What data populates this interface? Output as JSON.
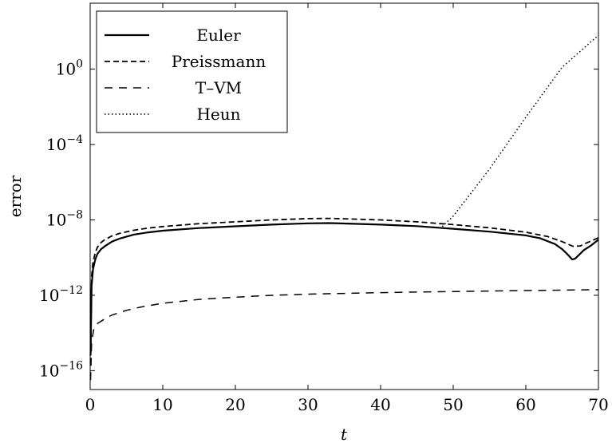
{
  "chart_data": {
    "type": "line",
    "xlabel": "t",
    "ylabel": "error",
    "xlim": [
      0,
      70
    ],
    "ylim_log10": [
      -17,
      3.5
    ],
    "yscale": "log",
    "xticks": [
      0,
      10,
      20,
      30,
      40,
      50,
      60,
      70
    ],
    "yticks": [
      {
        "exp": 0,
        "base": "10",
        "sup": "0"
      },
      {
        "exp": -4,
        "base": "10",
        "sup": "−4"
      },
      {
        "exp": -8,
        "base": "10",
        "sup": "−8"
      },
      {
        "exp": -12,
        "base": "10",
        "sup": "−12"
      },
      {
        "exp": -16,
        "base": "10",
        "sup": "−16"
      }
    ],
    "grid": false,
    "legend_position": "top-left",
    "series": [
      {
        "name": "Euler",
        "style": "solid",
        "x": [
          0.05,
          0.2,
          0.4,
          0.7,
          1,
          1.5,
          2,
          3,
          4,
          6,
          8,
          10,
          15,
          20,
          25,
          30,
          33,
          35,
          40,
          45,
          50,
          55,
          60,
          62,
          64,
          65,
          65.8,
          66.4,
          66.8,
          67.2,
          68,
          69,
          70
        ],
        "log10y": [
          -15.2,
          -11.5,
          -10.6,
          -10.1,
          -9.8,
          -9.55,
          -9.4,
          -9.15,
          -9.0,
          -8.78,
          -8.66,
          -8.57,
          -8.43,
          -8.34,
          -8.25,
          -8.18,
          -8.17,
          -8.19,
          -8.25,
          -8.33,
          -8.47,
          -8.62,
          -8.82,
          -8.98,
          -9.28,
          -9.55,
          -9.85,
          -10.1,
          -10.05,
          -9.9,
          -9.6,
          -9.35,
          -9.05
        ]
      },
      {
        "name": "Preissmann",
        "style": "dashed",
        "x": [
          0.05,
          0.2,
          0.4,
          0.7,
          1,
          1.5,
          2,
          3,
          4,
          6,
          8,
          10,
          15,
          20,
          25,
          30,
          33,
          35,
          40,
          45,
          50,
          55,
          60,
          63,
          65,
          66.5,
          67.5,
          68.5,
          70
        ],
        "log10y": [
          -15.2,
          -11.0,
          -10.2,
          -9.75,
          -9.45,
          -9.2,
          -9.05,
          -8.85,
          -8.72,
          -8.55,
          -8.43,
          -8.35,
          -8.2,
          -8.1,
          -8.0,
          -7.93,
          -7.92,
          -7.94,
          -8.0,
          -8.1,
          -8.25,
          -8.42,
          -8.65,
          -8.88,
          -9.15,
          -9.4,
          -9.38,
          -9.2,
          -8.95
        ]
      },
      {
        "name": "T–VM",
        "style": "longdash",
        "x": [
          0.05,
          0.2,
          0.5,
          1,
          2,
          3,
          5,
          7,
          10,
          15,
          20,
          25,
          30,
          35,
          40,
          50,
          60,
          70
        ],
        "log10y": [
          -16.5,
          -14.5,
          -13.8,
          -13.5,
          -13.25,
          -13.05,
          -12.8,
          -12.62,
          -12.42,
          -12.22,
          -12.1,
          -12.0,
          -11.94,
          -11.9,
          -11.86,
          -11.8,
          -11.75,
          -11.7
        ]
      },
      {
        "name": "Heun",
        "style": "dotted",
        "x": [
          48.5,
          50,
          55,
          60,
          65,
          70
        ],
        "log10y": [
          -8.35,
          -7.8,
          -5.3,
          -2.55,
          0.1,
          1.8
        ]
      }
    ]
  }
}
